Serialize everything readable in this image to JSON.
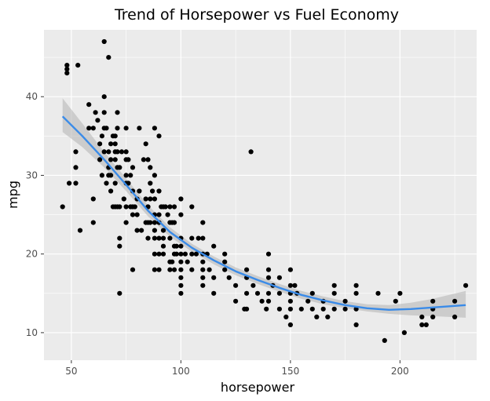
{
  "chart_data": {
    "type": "scatter",
    "title": "Trend of Horsepower vs Fuel Economy",
    "xlabel": "horsepower",
    "ylabel": "mpg",
    "xlim": [
      37.5,
      235
    ],
    "ylim": [
      6.5,
      48.5
    ],
    "xticks": [
      50,
      100,
      150,
      200
    ],
    "yticks": [
      10,
      20,
      30,
      40
    ],
    "grid": true,
    "colors": {
      "panel": "#ebebeb",
      "grid": "#ffffff",
      "points": "#000000",
      "smooth": "#3a8be8",
      "band": "#b3b3b3"
    },
    "points": [
      [
        46,
        26
      ],
      [
        48,
        43
      ],
      [
        48,
        43.5
      ],
      [
        48,
        44
      ],
      [
        49,
        29
      ],
      [
        52,
        29
      ],
      [
        52,
        31
      ],
      [
        52,
        33
      ],
      [
        53,
        44
      ],
      [
        54,
        23
      ],
      [
        58,
        39
      ],
      [
        58,
        36
      ],
      [
        60,
        36
      ],
      [
        60,
        27
      ],
      [
        60,
        24
      ],
      [
        61,
        38
      ],
      [
        62,
        37
      ],
      [
        63,
        32
      ],
      [
        63,
        34
      ],
      [
        64,
        30
      ],
      [
        64,
        35
      ],
      [
        65,
        33
      ],
      [
        65,
        36
      ],
      [
        65,
        38
      ],
      [
        65,
        40
      ],
      [
        65,
        47
      ],
      [
        66,
        29
      ],
      [
        66,
        36
      ],
      [
        67,
        45
      ],
      [
        67,
        30
      ],
      [
        67,
        33
      ],
      [
        67,
        31
      ],
      [
        68,
        30
      ],
      [
        68,
        28
      ],
      [
        68,
        34
      ],
      [
        68,
        32
      ],
      [
        69,
        26
      ],
      [
        69,
        35
      ],
      [
        70,
        32
      ],
      [
        70,
        33
      ],
      [
        70,
        34
      ],
      [
        70,
        35
      ],
      [
        70,
        29
      ],
      [
        70,
        26
      ],
      [
        71,
        33
      ],
      [
        71,
        26
      ],
      [
        71,
        31
      ],
      [
        71,
        36
      ],
      [
        71,
        38
      ],
      [
        72,
        31
      ],
      [
        72,
        26
      ],
      [
        72,
        22
      ],
      [
        72,
        21
      ],
      [
        72,
        15
      ],
      [
        73,
        33
      ],
      [
        74,
        27
      ],
      [
        75,
        32
      ],
      [
        75,
        29
      ],
      [
        75,
        33
      ],
      [
        75,
        30
      ],
      [
        75,
        26
      ],
      [
        75,
        24
      ],
      [
        75,
        36
      ],
      [
        76,
        29
      ],
      [
        76,
        32
      ],
      [
        77,
        30
      ],
      [
        77,
        26
      ],
      [
        78,
        26
      ],
      [
        78,
        28
      ],
      [
        78,
        25
      ],
      [
        78,
        31
      ],
      [
        78,
        18
      ],
      [
        79,
        26
      ],
      [
        80,
        27
      ],
      [
        80,
        25
      ],
      [
        80,
        23
      ],
      [
        81,
        28
      ],
      [
        81,
        36
      ],
      [
        82,
        23
      ],
      [
        83,
        32
      ],
      [
        84,
        27
      ],
      [
        84,
        24
      ],
      [
        84,
        34
      ],
      [
        85,
        24
      ],
      [
        85,
        32
      ],
      [
        85,
        26
      ],
      [
        85,
        22
      ],
      [
        86,
        29
      ],
      [
        86,
        24
      ],
      [
        86,
        27
      ],
      [
        86,
        31
      ],
      [
        87,
        28
      ],
      [
        88,
        27
      ],
      [
        88,
        24
      ],
      [
        88,
        30
      ],
      [
        88,
        25
      ],
      [
        88,
        23
      ],
      [
        88,
        22
      ],
      [
        88,
        20
      ],
      [
        88,
        18
      ],
      [
        88,
        36
      ],
      [
        90,
        28
      ],
      [
        90,
        25
      ],
      [
        90,
        24
      ],
      [
        90,
        22
      ],
      [
        90,
        20
      ],
      [
        90,
        18
      ],
      [
        90,
        35
      ],
      [
        91,
        26
      ],
      [
        92,
        26
      ],
      [
        92,
        23
      ],
      [
        92,
        22
      ],
      [
        92,
        21
      ],
      [
        92,
        20
      ],
      [
        93,
        26
      ],
      [
        94,
        25
      ],
      [
        95,
        24
      ],
      [
        95,
        26
      ],
      [
        95,
        22
      ],
      [
        95,
        19
      ],
      [
        95,
        18
      ],
      [
        96,
        24
      ],
      [
        96,
        19
      ],
      [
        97,
        26
      ],
      [
        97,
        24
      ],
      [
        97,
        21
      ],
      [
        97,
        20
      ],
      [
        97,
        18
      ],
      [
        98,
        21
      ],
      [
        98,
        20
      ],
      [
        100,
        27
      ],
      [
        100,
        25
      ],
      [
        100,
        22
      ],
      [
        100,
        21
      ],
      [
        100,
        20
      ],
      [
        100,
        19
      ],
      [
        100,
        18
      ],
      [
        100,
        17
      ],
      [
        100,
        16
      ],
      [
        100,
        15
      ],
      [
        102,
        20
      ],
      [
        103,
        19
      ],
      [
        105,
        26
      ],
      [
        105,
        22
      ],
      [
        105,
        20
      ],
      [
        105,
        18
      ],
      [
        107,
        20
      ],
      [
        108,
        22
      ],
      [
        110,
        24
      ],
      [
        110,
        22
      ],
      [
        110,
        20
      ],
      [
        110,
        19
      ],
      [
        110,
        18
      ],
      [
        110,
        17
      ],
      [
        110,
        16
      ],
      [
        112,
        20
      ],
      [
        113,
        18
      ],
      [
        115,
        21
      ],
      [
        115,
        17
      ],
      [
        115,
        15
      ],
      [
        120,
        20
      ],
      [
        120,
        19
      ],
      [
        120,
        18
      ],
      [
        122,
        17
      ],
      [
        125,
        16
      ],
      [
        125,
        14
      ],
      [
        129,
        13
      ],
      [
        130,
        18
      ],
      [
        130,
        17
      ],
      [
        130,
        15
      ],
      [
        130,
        13
      ],
      [
        132,
        33
      ],
      [
        133,
        16
      ],
      [
        135,
        15
      ],
      [
        137,
        14
      ],
      [
        139,
        13
      ],
      [
        140,
        20
      ],
      [
        140,
        18
      ],
      [
        140,
        17
      ],
      [
        140,
        15
      ],
      [
        140,
        14
      ],
      [
        142,
        16
      ],
      [
        145,
        17
      ],
      [
        145,
        15
      ],
      [
        145,
        13
      ],
      [
        148,
        12
      ],
      [
        150,
        18
      ],
      [
        150,
        16
      ],
      [
        150,
        15
      ],
      [
        150,
        14
      ],
      [
        150,
        13
      ],
      [
        150,
        11
      ],
      [
        152,
        16
      ],
      [
        153,
        15
      ],
      [
        155,
        13
      ],
      [
        158,
        14
      ],
      [
        160,
        15
      ],
      [
        160,
        13
      ],
      [
        162,
        12
      ],
      [
        165,
        14
      ],
      [
        165,
        13
      ],
      [
        167,
        12
      ],
      [
        170,
        16
      ],
      [
        170,
        15
      ],
      [
        170,
        13
      ],
      [
        175,
        14
      ],
      [
        175,
        13
      ],
      [
        180,
        16
      ],
      [
        180,
        15
      ],
      [
        180,
        13
      ],
      [
        180,
        11
      ],
      [
        190,
        15
      ],
      [
        193,
        9
      ],
      [
        198,
        14
      ],
      [
        200,
        15
      ],
      [
        202,
        10
      ],
      [
        210,
        11
      ],
      [
        210,
        12
      ],
      [
        212,
        11
      ],
      [
        215,
        12
      ],
      [
        215,
        13
      ],
      [
        215,
        14
      ],
      [
        225,
        14
      ],
      [
        225,
        12
      ],
      [
        230,
        16
      ]
    ],
    "smooth": {
      "x": [
        46,
        55,
        65,
        75,
        85,
        95,
        105,
        115,
        125,
        135,
        145,
        155,
        165,
        175,
        185,
        195,
        205,
        215,
        230
      ],
      "y": [
        37.5,
        35,
        32,
        28.8,
        25.5,
        22.8,
        20.8,
        19.2,
        17.8,
        16.7,
        15.7,
        14.8,
        14.1,
        13.5,
        13.1,
        12.9,
        13,
        13.2,
        13.5
      ],
      "lower": [
        35.5,
        33.6,
        31,
        28,
        24.8,
        22.2,
        20.3,
        18.7,
        17.3,
        16.2,
        15.2,
        14.3,
        13.6,
        13.1,
        12.7,
        12.4,
        12.2,
        12.1,
        11.9
      ],
      "upper": [
        39.8,
        36.6,
        33,
        29.6,
        26.2,
        23.4,
        21.3,
        19.7,
        18.3,
        17.2,
        16.2,
        15.3,
        14.6,
        14,
        13.6,
        13.5,
        13.8,
        14.3,
        15.3
      ]
    }
  }
}
